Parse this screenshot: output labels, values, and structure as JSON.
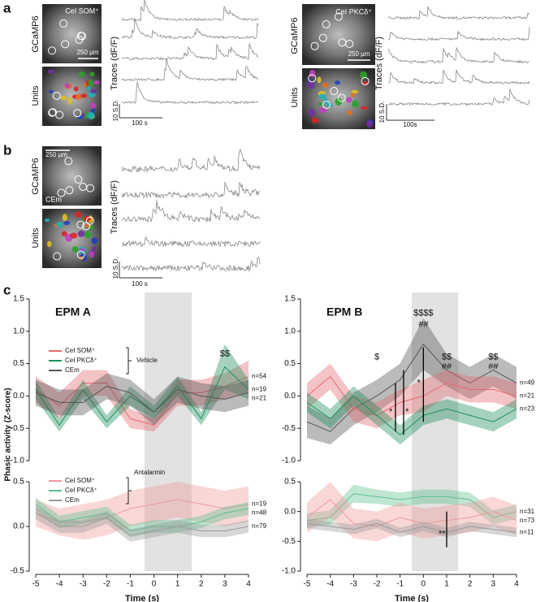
{
  "panels": {
    "a": {
      "label": "a",
      "left": {
        "image_label": "CeI SOM⁺",
        "scale": "250 µm",
        "row1": "GCaMP6",
        "row2": "Units",
        "traces": "Traces (dF/F)",
        "y_scale": "10 S.D.",
        "x_scale": "100 s"
      },
      "right": {
        "image_label": "CeI PKCδ⁺",
        "scale": "250 µm",
        "row1": "GCaMP6",
        "row2": "Units",
        "traces": "Traces (dF/F)",
        "y_scale": "10 S.D.",
        "x_scale": "100s"
      }
    },
    "b": {
      "label": "b",
      "image_label": "CEm",
      "scale": "250 µm",
      "row1": "GCaMP6",
      "row2": "Units",
      "traces": "Traces (dF/F)",
      "y_scale": "10 S.D.",
      "x_scale": "100 s"
    },
    "c": {
      "label": "c",
      "y_label": "Phasic activity (Z-score)"
    }
  },
  "chart_data": [
    {
      "type": "line",
      "title": "EPM A",
      "legend_title": "Vehicle",
      "x": [
        -5,
        -4,
        -3,
        -2,
        -1,
        0,
        1,
        2,
        3,
        4
      ],
      "xlim": [
        -5,
        4
      ],
      "highlight": [
        -0.4,
        1.6
      ],
      "ylim": [
        -1,
        1.5
      ],
      "yticks": [
        {
          "value": -1,
          "label": "-1.0"
        },
        -0.5,
        {
          "value": 0,
          "label": "0.0"
        },
        0.5,
        {
          "value": 1,
          "label": "1.0"
        },
        1.5
      ],
      "series": [
        {
          "name": "CeI SOM⁺",
          "n_label": "n=54",
          "color": "#e46a6e",
          "values": [
            0.1,
            -0.15,
            0.2,
            0.2,
            -0.35,
            -0.45,
            0.05,
            0.05,
            0.15,
            0.3
          ],
          "errors": [
            0.2,
            0.2,
            0.2,
            0.2,
            0.15,
            0.1,
            0.2,
            0.2,
            0.2,
            0.25
          ]
        },
        {
          "name": "CeI PKCδ⁺",
          "n_label": "n=19",
          "color": "#1f8f5c",
          "values": [
            0.1,
            -0.45,
            0.1,
            -0.4,
            0.0,
            -0.25,
            0.15,
            -0.35,
            0.45,
            0.1
          ],
          "errors": [
            0.15,
            0.1,
            0.15,
            0.1,
            0.15,
            0.1,
            0.15,
            0.1,
            0.35,
            0.15
          ]
        },
        {
          "name": "CEm",
          "n_label": "n=21",
          "color": "#555555",
          "values": [
            0.05,
            -0.1,
            -0.1,
            0.15,
            0.05,
            -0.25,
            0.1,
            0.0,
            -0.05,
            0.05
          ],
          "errors": [
            0.2,
            0.2,
            0.2,
            0.2,
            0.2,
            0.2,
            0.2,
            0.2,
            0.2,
            0.2
          ]
        }
      ],
      "annotations": [
        {
          "text": "$$",
          "x": 3,
          "y": 0.65
        }
      ],
      "sig_lines": []
    },
    {
      "type": "line",
      "legend_title": "Antalarmin",
      "x_label": "Time (s)",
      "x": [
        -5,
        -4,
        -3,
        -2,
        -1,
        0,
        1,
        2,
        3,
        4
      ],
      "xlim": [
        -5,
        4
      ],
      "xticks": [
        -5,
        -4,
        -3,
        -2,
        -1,
        0,
        1,
        2,
        3,
        4
      ],
      "highlight": [
        -0.4,
        1.6
      ],
      "ylim": [
        -0.5,
        0.5
      ],
      "yticks": [
        -0.5,
        {
          "value": 0,
          "label": "0.0"
        },
        0.5
      ],
      "series": [
        {
          "name": "CeI SOM⁺",
          "n_label": "n=19",
          "color": "#ef9a9c",
          "values": [
            0.15,
            0.05,
            0.05,
            0.1,
            0.2,
            0.25,
            0.3,
            0.25,
            0.2,
            0.25
          ],
          "errors": [
            0.15,
            0.15,
            0.2,
            0.2,
            0.2,
            0.2,
            0.2,
            0.2,
            0.2,
            0.2
          ]
        },
        {
          "name": "CeI PKCδ⁺",
          "n_label": "n=48",
          "color": "#5fc08e",
          "values": [
            0.25,
            0.05,
            0.1,
            0.15,
            -0.05,
            0.0,
            0.0,
            0.05,
            0.15,
            0.2
          ],
          "errors": [
            0.07,
            0.07,
            0.07,
            0.07,
            0.07,
            0.07,
            0.07,
            0.07,
            0.07,
            0.07
          ]
        },
        {
          "name": "CEm",
          "n_label": "n=79",
          "color": "#9a9a9a",
          "values": [
            0.15,
            0.0,
            0.0,
            0.1,
            -0.1,
            -0.05,
            0.0,
            -0.05,
            -0.05,
            0.0
          ],
          "errors": [
            0.07,
            0.07,
            0.07,
            0.07,
            0.07,
            0.07,
            0.07,
            0.07,
            0.07,
            0.07
          ]
        }
      ],
      "annotations": [],
      "sig_lines": []
    },
    {
      "type": "line",
      "title": "EPM B",
      "x": [
        -5,
        -4,
        -3,
        -2,
        -1,
        0,
        1,
        2,
        3,
        4
      ],
      "xlim": [
        -5,
        4
      ],
      "highlight": [
        -0.5,
        1.5
      ],
      "ylim": [
        -1,
        1.5
      ],
      "yticks": [
        {
          "value": -1,
          "label": "-1.0"
        },
        -0.5,
        {
          "value": 0,
          "label": "0.0"
        },
        0.5,
        {
          "value": 1,
          "label": "1.0"
        },
        1.5
      ],
      "series": [
        {
          "n_label": "n=49",
          "color": "#555555",
          "values": [
            -0.4,
            -0.55,
            -0.2,
            0.0,
            0.25,
            0.8,
            0.4,
            0.2,
            0.4,
            0.2
          ],
          "errors": [
            0.25,
            0.2,
            0.25,
            0.25,
            0.25,
            0.4,
            0.25,
            0.25,
            0.25,
            0.25
          ]
        },
        {
          "n_label": "n=21",
          "color": "#e46a6e",
          "values": [
            0.0,
            0.3,
            -0.2,
            -0.3,
            -0.1,
            0.0,
            0.2,
            0.1,
            0.1,
            0.0
          ],
          "errors": [
            0.2,
            0.2,
            0.2,
            0.2,
            0.2,
            0.25,
            0.2,
            0.2,
            0.2,
            0.2
          ]
        },
        {
          "n_label": "n=23",
          "color": "#1f8f5c",
          "values": [
            -0.1,
            -0.35,
            0.0,
            -0.3,
            -0.6,
            -0.3,
            -0.2,
            -0.3,
            -0.4,
            -0.2
          ],
          "errors": [
            0.15,
            0.15,
            0.15,
            0.15,
            0.15,
            0.15,
            0.15,
            0.15,
            0.15,
            0.15
          ]
        }
      ],
      "annotations": [
        {
          "text": "$",
          "x": -2,
          "y": 0.6
        },
        {
          "text": "$$$$",
          "x": 0,
          "y": 1.28
        },
        {
          "text": "##",
          "x": 0,
          "y": 1.1
        },
        {
          "text": "$$",
          "x": 1,
          "y": 0.6
        },
        {
          "text": "##",
          "x": 1,
          "y": 0.45
        },
        {
          "text": "$$",
          "x": 3,
          "y": 0.6
        },
        {
          "text": "##",
          "x": 3,
          "y": 0.45
        },
        {
          "text": "*",
          "x": -1.4,
          "y": -0.25
        },
        {
          "text": "*",
          "x": -0.7,
          "y": -0.25
        },
        {
          "text": "*",
          "x": -0.2,
          "y": 0.2
        }
      ],
      "sig_lines": [
        {
          "x": -1.2,
          "y": [
            -0.55,
            0.2
          ]
        },
        {
          "x": -0.85,
          "y": [
            -0.6,
            0.4
          ]
        },
        {
          "x": 0,
          "y": [
            -0.4,
            0.75
          ]
        }
      ]
    },
    {
      "type": "line",
      "x_label": "Time (s)",
      "x": [
        -5,
        -4,
        -3,
        -2,
        -1,
        0,
        1,
        2,
        3,
        4
      ],
      "xlim": [
        -5,
        4
      ],
      "xticks": [
        -5,
        -4,
        -3,
        -2,
        -1,
        0,
        1,
        2,
        3,
        4
      ],
      "highlight": [
        -0.5,
        1.5
      ],
      "ylim": [
        -1,
        0.5
      ],
      "yticks": [
        {
          "value": -1,
          "label": "-1.0"
        },
        -0.5,
        {
          "value": 0,
          "label": "0.0"
        },
        0.5
      ],
      "series": [
        {
          "n_label": "n=31",
          "color": "#5fc08e",
          "values": [
            -0.15,
            -0.1,
            0.3,
            0.25,
            0.2,
            0.25,
            0.25,
            0.2,
            -0.1,
            0.0
          ],
          "errors": [
            0.12,
            0.12,
            0.15,
            0.12,
            0.12,
            0.12,
            0.12,
            0.12,
            0.12,
            0.12
          ]
        },
        {
          "n_label": "n=73",
          "color": "#ef9a9c",
          "values": [
            -0.1,
            0.2,
            -0.2,
            -0.25,
            -0.1,
            -0.2,
            -0.15,
            -0.1,
            0.0,
            -0.15
          ],
          "errors": [
            0.25,
            0.3,
            0.25,
            0.25,
            0.25,
            0.25,
            0.25,
            0.25,
            0.25,
            0.25
          ]
        },
        {
          "n_label": "n=11",
          "color": "#9a9a9a",
          "values": [
            -0.2,
            -0.25,
            -0.3,
            -0.2,
            -0.35,
            -0.25,
            -0.35,
            -0.25,
            -0.3,
            -0.35
          ],
          "errors": [
            0.08,
            0.08,
            0.08,
            0.08,
            0.08,
            0.08,
            0.08,
            0.08,
            0.08,
            0.08
          ]
        }
      ],
      "annotations": [
        {
          "text": "**",
          "x": 0.8,
          "y": -0.38
        }
      ],
      "sig_lines": [
        {
          "x": 1,
          "y": [
            -0.6,
            0.0
          ]
        }
      ]
    }
  ]
}
